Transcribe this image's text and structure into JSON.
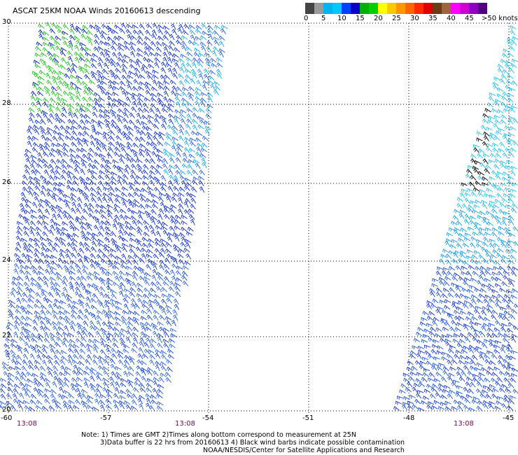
{
  "title": "ASCAT 25KM NOAA Winds 20160613 descending",
  "colorbar": {
    "colors": [
      "#444444",
      "#9a9a9a",
      "#00b4f0",
      "#00c8ff",
      "#0040ff",
      "#0000c8",
      "#00b000",
      "#00d000",
      "#ffff00",
      "#ffc800",
      "#ff9600",
      "#ff6400",
      "#ff2800",
      "#e00000",
      "#6e3c14",
      "#a0643c",
      "#ff00ff",
      "#d000d0",
      "#9000c0",
      "#500080"
    ],
    "tick_labels": [
      "0",
      "5",
      "10",
      "15",
      "20",
      "25",
      "30",
      "35",
      "40",
      "45",
      ">50 knots"
    ]
  },
  "latitude_labels": [
    "30",
    "28",
    "26",
    "24",
    "22",
    "20"
  ],
  "longitude_labels": [
    "-60",
    "-57",
    "-54",
    "-51",
    "-48",
    "-45"
  ],
  "pass_times": [
    "13:08",
    "13:08",
    "13:08"
  ],
  "notes": [
    "Note: 1) Times are GMT 2)Times along bottom correspond to measurement at 25N",
    "3)Data buffer is 22 hrs from 20160613 4) Black wind barbs indicate possible contamination",
    "NOAA/NESDIS/Center for Satellite Applications and Research"
  ]
}
